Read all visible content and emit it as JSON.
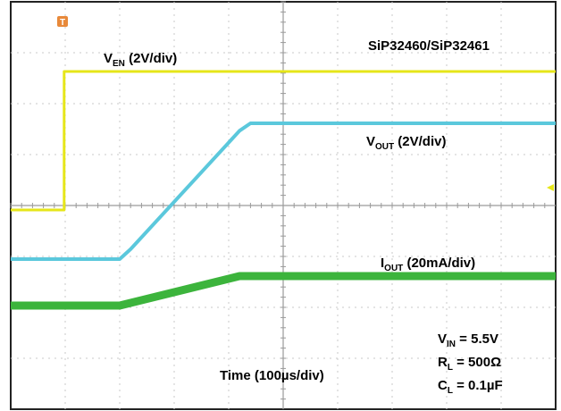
{
  "chart_data": {
    "type": "line",
    "title": "SiP32460/SiP32461",
    "xlabel": "Time (100µs/div)",
    "x_unit": "µs",
    "x_per_div": 100,
    "x_divisions": 10,
    "y_divisions": 8,
    "grid": true,
    "trigger_marker": "T",
    "series": [
      {
        "name_main": "V",
        "name_sub": "EN",
        "name_rest": " (2V/div)",
        "name": "VEN (2V/div)",
        "color": "#e6e619",
        "unit": "V",
        "volts_per_div": 2,
        "points": [
          [
            0,
            0
          ],
          [
            98,
            0
          ],
          [
            98,
            5.5
          ],
          [
            1000,
            5.5
          ]
        ]
      },
      {
        "name_main": "V",
        "name_sub": "OUT",
        "name_rest": " (2V/div)",
        "name": "VOUT (2V/div)",
        "color": "#5bc8dc",
        "unit": "V",
        "volts_per_div": 2,
        "points": [
          [
            0,
            0
          ],
          [
            200,
            0
          ],
          [
            220,
            0.4
          ],
          [
            420,
            5.2
          ],
          [
            440,
            5.5
          ],
          [
            1000,
            5.5
          ]
        ]
      },
      {
        "name_main": "I",
        "name_sub": "OUT",
        "name_rest": " (20mA/div)",
        "name": "IOUT (20mA/div)",
        "color": "#3cb43c",
        "unit": "mA",
        "amps_per_div": 20,
        "points": [
          [
            0,
            0
          ],
          [
            200,
            0
          ],
          [
            220,
            1
          ],
          [
            420,
            11
          ],
          [
            440,
            11
          ],
          [
            1000,
            11
          ]
        ]
      }
    ]
  },
  "conditions": [
    {
      "main": "V",
      "sub": "IN",
      "rest": " = 5.5V"
    },
    {
      "main": "R",
      "sub": "L",
      "rest": " = 500Ω"
    },
    {
      "main": "C",
      "sub": "L",
      "rest": " = 0.1µF"
    }
  ]
}
